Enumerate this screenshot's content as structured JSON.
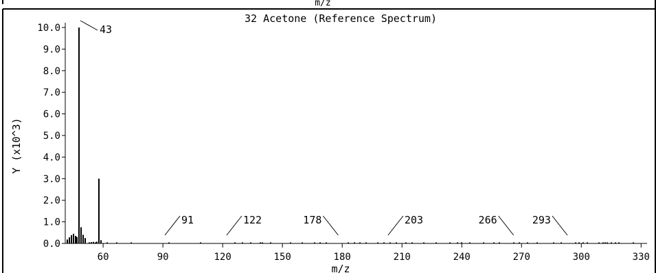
{
  "header": {
    "top_label": "m/z"
  },
  "chart_data": {
    "type": "bar",
    "title": "32 Acetone (Reference Spectrum)",
    "xlabel": "m/z",
    "ylabel": "Y (x10^3)",
    "xlim": [
      41,
      333
    ],
    "ylim": [
      0,
      10
    ],
    "grid": false,
    "x_ticks": [
      60,
      90,
      120,
      150,
      180,
      210,
      240,
      270,
      300,
      330
    ],
    "y_ticks": [
      "0.0",
      "1.0",
      "2.0",
      "3.0",
      "4.0",
      "5.0",
      "6.0",
      "7.0",
      "8.0",
      "9.0",
      "10.0"
    ],
    "series": [
      {
        "x": [
          42,
          43,
          44,
          45,
          46,
          47,
          48,
          49,
          50,
          51,
          53,
          54,
          55,
          56,
          57,
          58,
          59,
          62,
          67,
          74,
          93,
          109,
          126,
          130,
          134,
          139,
          140,
          144,
          154,
          160,
          166,
          169,
          172,
          183,
          186,
          189,
          192,
          198,
          201,
          204,
          207,
          212,
          215,
          221,
          227,
          234,
          238,
          240,
          244,
          251,
          256,
          259,
          266,
          269,
          273,
          278,
          286,
          290,
          297,
          299,
          301,
          303,
          309,
          311,
          312,
          313,
          315,
          317,
          319,
          326
        ],
        "values": [
          0.18,
          0.28,
          0.38,
          0.45,
          0.35,
          0.3,
          10.0,
          0.75,
          0.4,
          0.25,
          0.05,
          0.06,
          0.07,
          0.05,
          0.08,
          3.0,
          0.15,
          0.04,
          0.03,
          0.03,
          0.03,
          0.03,
          0.03,
          0.03,
          0.03,
          0.03,
          0.03,
          0.03,
          0.03,
          0.03,
          0.03,
          0.03,
          0.03,
          0.03,
          0.03,
          0.03,
          0.03,
          0.03,
          0.03,
          0.03,
          0.03,
          0.03,
          0.03,
          0.03,
          0.03,
          0.03,
          0.03,
          0.03,
          0.03,
          0.03,
          0.03,
          0.03,
          0.03,
          0.03,
          0.03,
          0.03,
          0.03,
          0.03,
          0.03,
          0.03,
          0.03,
          0.03,
          0.03,
          0.03,
          0.03,
          0.03,
          0.03,
          0.03,
          0.03,
          0.03
        ]
      }
    ],
    "annotations": [
      {
        "text": "43",
        "x": 46,
        "y": 10.0,
        "side": "right"
      },
      {
        "text": "91",
        "x": 91,
        "y": 0.0,
        "side": "right"
      },
      {
        "text": "122",
        "x": 122,
        "y": 0.0,
        "side": "right"
      },
      {
        "text": "178",
        "x": 178,
        "y": 0.0,
        "side": "left"
      },
      {
        "text": "203",
        "x": 203,
        "y": 0.0,
        "side": "right"
      },
      {
        "text": "266",
        "x": 266,
        "y": 0.0,
        "side": "left"
      },
      {
        "text": "293",
        "x": 293,
        "y": 0.0,
        "side": "left"
      }
    ]
  }
}
